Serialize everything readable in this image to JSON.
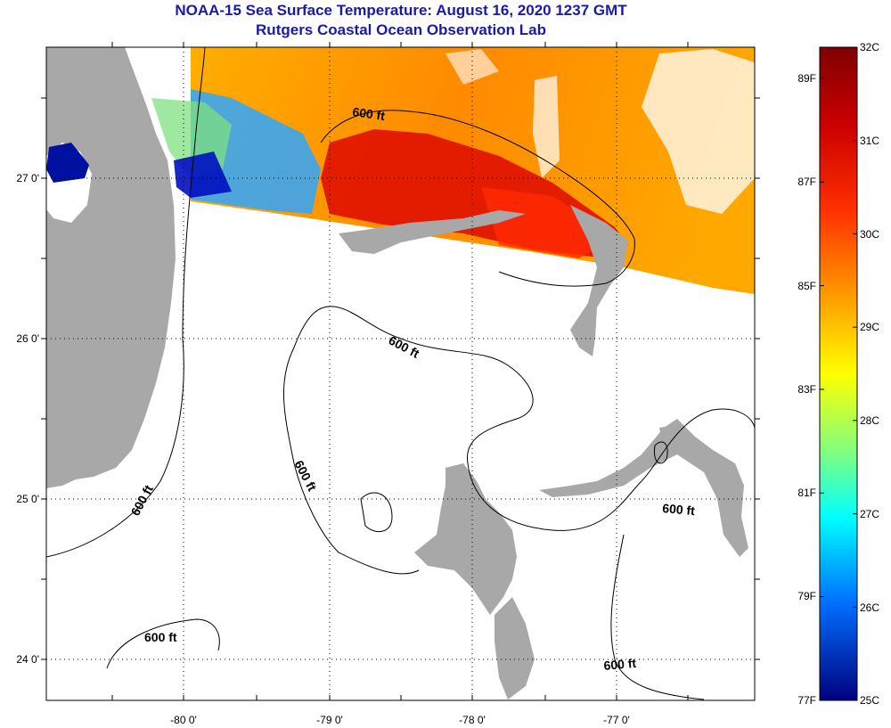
{
  "header": {
    "title": "NOAA-15 Sea Surface Temperature:  August 16, 2020 1237 GMT",
    "subtitle": "Rutgers Coastal Ocean Observation Lab"
  },
  "map": {
    "lon_labels": [
      "-80 0'",
      "-79 0'",
      "-78 0'",
      "-77 0'"
    ],
    "lat_labels": [
      "27 0'",
      "26 0'",
      "25 0'",
      "24 0'"
    ],
    "contour_label": "600 ft",
    "contour_label_count": 7
  },
  "colorbar": {
    "celsius_labels": [
      "32C",
      "31C",
      "30C",
      "29C",
      "28C",
      "27C",
      "26C",
      "25C"
    ],
    "fahrenheit_labels": [
      "89F",
      "87F",
      "85F",
      "83F",
      "81F",
      "79F",
      "77F"
    ],
    "min_celsius": 25,
    "max_celsius": 32
  },
  "colors": {
    "title": "#1a1aa6",
    "land": "#a8a8a8",
    "grid": "#000000"
  }
}
